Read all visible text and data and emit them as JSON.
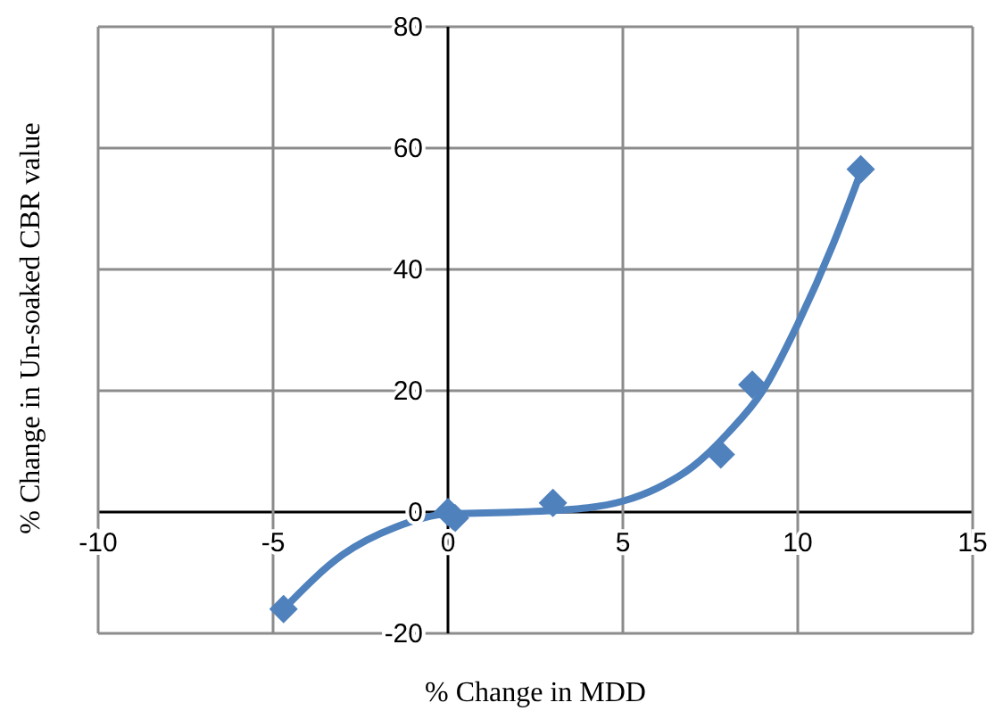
{
  "chart_data": {
    "type": "scatter",
    "xlabel": "% Change in MDD",
    "ylabel": "% Change in Un-soaked CBR value",
    "series": [
      {
        "type": "scatter",
        "color": "#4f81bd",
        "marker": "diamond",
        "x": [
          -4.7,
          0,
          0.2,
          3,
          7.8,
          8.7,
          11.8
        ],
        "values": [
          -16,
          0,
          -1,
          1.5,
          9.5,
          21,
          56.5
        ]
      },
      {
        "type": "line",
        "color": "#4f81bd",
        "marker": "none",
        "x": [
          -4.7,
          -3,
          -1.5,
          0,
          2,
          4,
          5,
          6,
          7,
          8,
          9,
          10,
          11,
          11.8
        ],
        "values": [
          -16,
          -7,
          -2.5,
          -0.3,
          0,
          0.7,
          1.8,
          4,
          7.5,
          13,
          20,
          31,
          44,
          56
        ]
      }
    ],
    "xlim": [
      -10,
      15
    ],
    "xticks": [
      -10,
      -5,
      0,
      5,
      10,
      15
    ],
    "ylim": [
      -20,
      80
    ],
    "yticks": [
      -20,
      0,
      20,
      40,
      60,
      80
    ],
    "grid": true
  }
}
